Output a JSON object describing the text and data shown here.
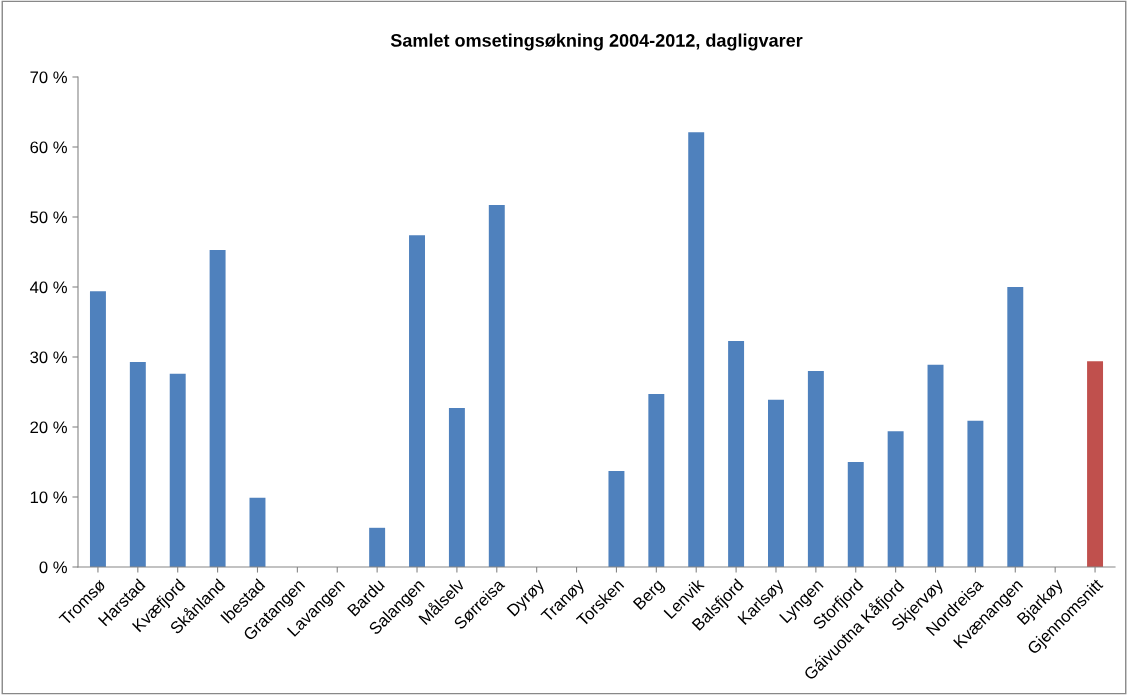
{
  "chart_data": {
    "type": "bar",
    "title": "Samlet omsetingsøkning 2004-2012, dagligvarer",
    "categories": [
      "Tromsø",
      "Harstad",
      "Kvæfjord",
      "Skånland",
      "Ibestad",
      "Gratangen",
      "Lavangen",
      "Bardu",
      "Salangen",
      "Målselv",
      "Sørreisa",
      "Dyrøy",
      "Tranøy",
      "Torsken",
      "Berg",
      "Lenvik",
      "Balsfjord",
      "Karlsøy",
      "Lyngen",
      "Storfjord",
      "Gáivuotna Kåfjord",
      "Skjervøy",
      "Nordreisa",
      "Kvænangen",
      "Bjarkøy",
      "Gjennomsnitt"
    ],
    "values": [
      39.4,
      29.3,
      27.6,
      45.3,
      9.9,
      null,
      null,
      5.6,
      47.4,
      22.7,
      51.7,
      null,
      null,
      13.7,
      24.7,
      62.1,
      32.3,
      23.9,
      28.0,
      15.0,
      19.4,
      28.9,
      20.9,
      40.0,
      null,
      29.4
    ],
    "colors": [
      "#4f81bd",
      "#4f81bd",
      "#4f81bd",
      "#4f81bd",
      "#4f81bd",
      "#4f81bd",
      "#4f81bd",
      "#4f81bd",
      "#4f81bd",
      "#4f81bd",
      "#4f81bd",
      "#4f81bd",
      "#4f81bd",
      "#4f81bd",
      "#4f81bd",
      "#4f81bd",
      "#4f81bd",
      "#4f81bd",
      "#4f81bd",
      "#4f81bd",
      "#4f81bd",
      "#4f81bd",
      "#4f81bd",
      "#4f81bd",
      "#4f81bd",
      "#c0504d"
    ],
    "ylim": [
      0,
      70
    ],
    "yticks": [
      {
        "value": 0,
        "label": "0 %"
      },
      {
        "value": 10,
        "label": "10 %"
      },
      {
        "value": 20,
        "label": "20 %"
      },
      {
        "value": 30,
        "label": "30 %"
      },
      {
        "value": 40,
        "label": "40 %"
      },
      {
        "value": 50,
        "label": "50 %"
      },
      {
        "value": 60,
        "label": "60 %"
      },
      {
        "value": 70,
        "label": "70 %"
      }
    ],
    "grid": false,
    "legend": false
  }
}
